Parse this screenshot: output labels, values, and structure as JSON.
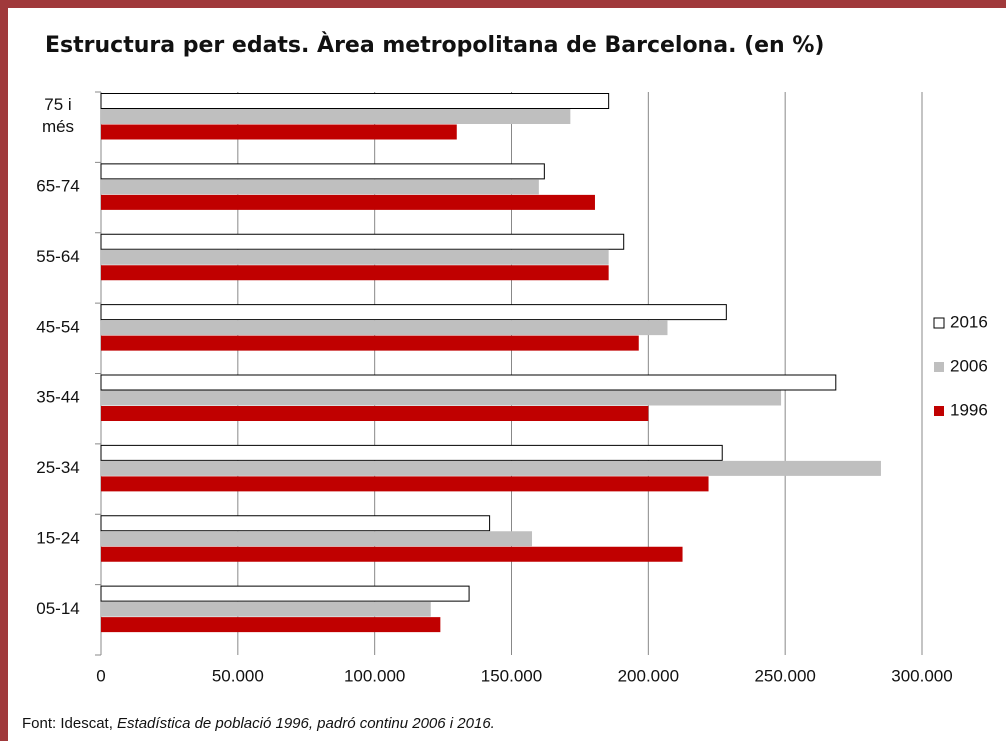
{
  "chart_data": {
    "type": "hbar",
    "title": "Estructura per edats. Àrea metropolitana de Barcelona. (en %)",
    "categories": [
      "05-14",
      "15-24",
      "25-34",
      "35-44",
      "45-54",
      "55-64",
      "65-74",
      "75 i més"
    ],
    "series": [
      {
        "name": "2016",
        "color": "#ffffff",
        "values": [
          134500,
          142000,
          227000,
          268500,
          228500,
          191000,
          162000,
          185500
        ]
      },
      {
        "name": "2006",
        "color": "#bfbfbf",
        "values": [
          120500,
          157500,
          285000,
          248500,
          207000,
          185500,
          160000,
          171500
        ]
      },
      {
        "name": "1996",
        "color": "#c00000",
        "values": [
          124000,
          212500,
          222000,
          200000,
          196500,
          185500,
          180500,
          130000
        ]
      }
    ],
    "xlim": [
      0,
      300000
    ],
    "xticks": [
      0,
      {
        "value": 50000,
        "label": "50.000"
      },
      {
        "value": 100000,
        "label": "100.000"
      },
      {
        "value": 150000,
        "label": "150.000"
      },
      {
        "value": 200000,
        "label": "200.000"
      },
      {
        "value": 250000,
        "label": "250.000"
      },
      {
        "value": 300000,
        "label": "300.000"
      }
    ],
    "grid": true,
    "legend": "right",
    "source_prefix": "Font: Idescat, ",
    "source_title": "Estadística de població 1996, padró continu 2006 i 2016."
  }
}
